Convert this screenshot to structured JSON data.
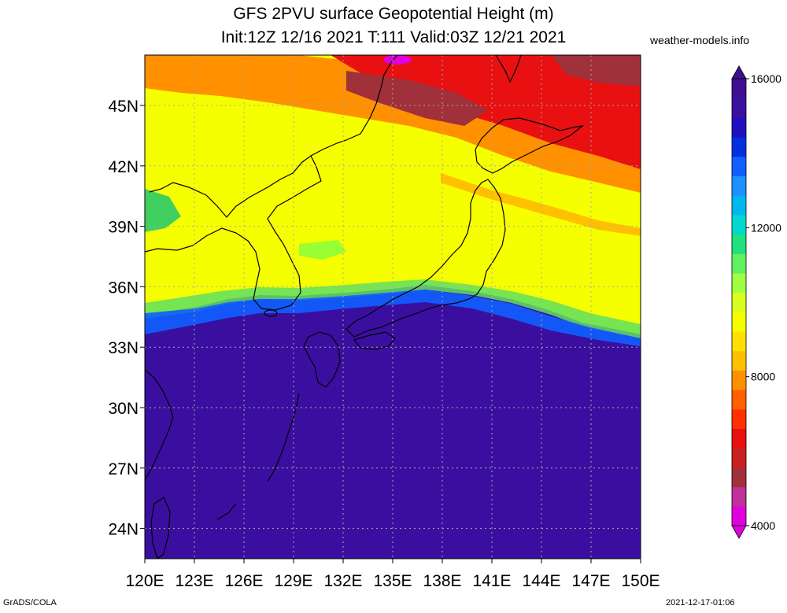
{
  "title": {
    "line1": "GFS 2PVU surface Geopotential Height (m)",
    "line2": "Init:12Z 12/16 2021 T:111 Valid:03Z 12/21 2021"
  },
  "credit": "weather-models.info",
  "footer": {
    "left": "GrADS/COLA",
    "right": "2021-12-17-01:06"
  },
  "map": {
    "lon_range": [
      120,
      150
    ],
    "lat_range": [
      22.5,
      47.5
    ],
    "lon_ticks": [
      "120E",
      "123E",
      "126E",
      "129E",
      "132E",
      "135E",
      "138E",
      "141E",
      "144E",
      "147E",
      "150E"
    ],
    "lat_ticks": [
      "24N",
      "27N",
      "30N",
      "33N",
      "36N",
      "39N",
      "42N",
      "45N"
    ],
    "gridlines": "dotted",
    "field": "2PVU surface geopotential height",
    "units": "m"
  },
  "colorbar": {
    "labels": [
      "16000",
      "12000",
      "8000",
      "4000"
    ],
    "min": 4000,
    "max": 16000,
    "colors": [
      "#e000e0",
      "#c0309a",
      "#a0303a",
      "#c82020",
      "#e81010",
      "#ff3000",
      "#ff6000",
      "#ff9000",
      "#ffc000",
      "#ffe000",
      "#f5ff00",
      "#d8ff20",
      "#a0ff40",
      "#60f060",
      "#20e080",
      "#00d8d0",
      "#00b8f0",
      "#1e90ff",
      "#1060ff",
      "#0030e0",
      "#2010c0",
      "#3a10a0",
      "#400f90"
    ]
  }
}
